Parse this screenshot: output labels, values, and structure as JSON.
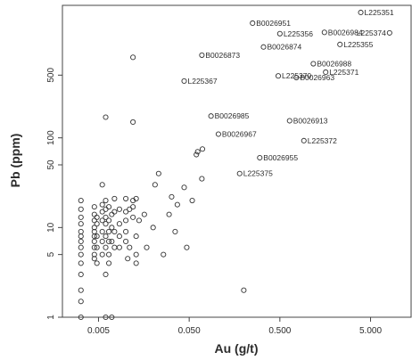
{
  "chart_data": {
    "type": "scatter",
    "xlabel": "Au (g/t)",
    "ylabel": "Pb (ppm)",
    "x_scale": "log",
    "y_scale": "log",
    "xlim": [
      0.002,
      14
    ],
    "ylim": [
      1,
      3000
    ],
    "x_ticks": [
      {
        "value": 0.005,
        "label": "0.005"
      },
      {
        "value": 0.05,
        "label": "0.050"
      },
      {
        "value": 0.5,
        "label": "0.500"
      },
      {
        "value": 5,
        "label": "5.000"
      }
    ],
    "y_ticks": [
      {
        "value": 1,
        "label": "1"
      },
      {
        "value": 5,
        "label": "5"
      },
      {
        "value": 10,
        "label": "10"
      },
      {
        "value": 50,
        "label": "50"
      },
      {
        "value": 100,
        "label": "100"
      },
      {
        "value": 500,
        "label": "500"
      }
    ],
    "grid": false,
    "marker": "open-circle",
    "labeled_points": [
      {
        "label": "B0026951",
        "x": 0.25,
        "y": 1900
      },
      {
        "label": "L225351",
        "x": 3.9,
        "y": 2500
      },
      {
        "label": "L225356",
        "x": 0.5,
        "y": 1450
      },
      {
        "label": "B0026984",
        "x": 1.55,
        "y": 1500
      },
      {
        "label": "L225374",
        "x": 8.1,
        "y": 1480
      },
      {
        "label": "L225355",
        "x": 2.3,
        "y": 1100
      },
      {
        "label": "B0026873",
        "x": 0.069,
        "y": 835
      },
      {
        "label": "B0026874",
        "x": 0.33,
        "y": 1030
      },
      {
        "label": "B0026988",
        "x": 1.17,
        "y": 670
      },
      {
        "label": "L225367",
        "x": 0.044,
        "y": 430
      },
      {
        "label": "L225370",
        "x": 0.48,
        "y": 490
      },
      {
        "label": "B0026963",
        "x": 0.76,
        "y": 470
      },
      {
        "label": "L225371",
        "x": 1.6,
        "y": 540
      },
      {
        "label": "B0026985",
        "x": 0.087,
        "y": 175
      },
      {
        "label": "B0026913",
        "x": 0.64,
        "y": 155
      },
      {
        "label": "B0026967",
        "x": 0.105,
        "y": 110
      },
      {
        "label": "L225372",
        "x": 0.92,
        "y": 93
      },
      {
        "label": "B0026955",
        "x": 0.3,
        "y": 60
      },
      {
        "label": "L225375",
        "x": 0.18,
        "y": 40
      }
    ],
    "points": [
      [
        0.0032,
        20
      ],
      [
        0.0032,
        16
      ],
      [
        0.0032,
        13
      ],
      [
        0.0032,
        11
      ],
      [
        0.0032,
        9
      ],
      [
        0.0032,
        8
      ],
      [
        0.0032,
        7
      ],
      [
        0.0032,
        6
      ],
      [
        0.0032,
        5
      ],
      [
        0.0032,
        4
      ],
      [
        0.0032,
        3
      ],
      [
        0.0032,
        2
      ],
      [
        0.0032,
        1.5
      ],
      [
        0.0032,
        1
      ],
      [
        0.0045,
        17
      ],
      [
        0.0045,
        14
      ],
      [
        0.0045,
        12
      ],
      [
        0.0045,
        10
      ],
      [
        0.0045,
        9
      ],
      [
        0.0045,
        8
      ],
      [
        0.0045,
        7
      ],
      [
        0.0045,
        6
      ],
      [
        0.0045,
        5
      ],
      [
        0.0045,
        4.5
      ],
      [
        0.0048,
        13
      ],
      [
        0.0048,
        11
      ],
      [
        0.0048,
        8
      ],
      [
        0.0048,
        6
      ],
      [
        0.0048,
        4
      ],
      [
        0.0055,
        30
      ],
      [
        0.0055,
        18
      ],
      [
        0.0055,
        15
      ],
      [
        0.0055,
        12
      ],
      [
        0.0055,
        9
      ],
      [
        0.0055,
        7
      ],
      [
        0.0055,
        5
      ],
      [
        0.006,
        20
      ],
      [
        0.006,
        16
      ],
      [
        0.006,
        13
      ],
      [
        0.006,
        11
      ],
      [
        0.006,
        8
      ],
      [
        0.006,
        6
      ],
      [
        0.006,
        3
      ],
      [
        0.006,
        1
      ],
      [
        0.0065,
        17
      ],
      [
        0.0065,
        12
      ],
      [
        0.0065,
        9
      ],
      [
        0.0065,
        7
      ],
      [
        0.0065,
        5
      ],
      [
        0.0065,
        4
      ],
      [
        0.007,
        14
      ],
      [
        0.007,
        10
      ],
      [
        0.007,
        7
      ],
      [
        0.007,
        1
      ],
      [
        0.0075,
        21
      ],
      [
        0.0075,
        15
      ],
      [
        0.0075,
        9
      ],
      [
        0.0075,
        6
      ],
      [
        0.0085,
        16
      ],
      [
        0.0085,
        11
      ],
      [
        0.0085,
        8
      ],
      [
        0.0085,
        6
      ],
      [
        0.01,
        21
      ],
      [
        0.01,
        15
      ],
      [
        0.01,
        12
      ],
      [
        0.01,
        9
      ],
      [
        0.01,
        7
      ],
      [
        0.0105,
        4.5
      ],
      [
        0.011,
        16
      ],
      [
        0.011,
        6
      ],
      [
        0.012,
        20
      ],
      [
        0.012,
        17
      ],
      [
        0.012,
        13
      ],
      [
        0.013,
        21
      ],
      [
        0.013,
        8
      ],
      [
        0.013,
        5
      ],
      [
        0.013,
        4
      ],
      [
        0.014,
        12
      ],
      [
        0.016,
        14
      ],
      [
        0.017,
        6
      ],
      [
        0.006,
        170
      ],
      [
        0.012,
        150
      ],
      [
        0.012,
        790
      ],
      [
        0.021,
        30
      ],
      [
        0.02,
        10
      ],
      [
        0.023,
        40
      ],
      [
        0.026,
        5
      ],
      [
        0.03,
        14
      ],
      [
        0.032,
        22
      ],
      [
        0.035,
        9
      ],
      [
        0.037,
        18
      ],
      [
        0.044,
        28
      ],
      [
        0.047,
        6
      ],
      [
        0.054,
        20
      ],
      [
        0.06,
        65
      ],
      [
        0.062,
        70
      ],
      [
        0.069,
        35
      ],
      [
        0.07,
        75
      ],
      [
        0.2,
        2
      ]
    ]
  }
}
